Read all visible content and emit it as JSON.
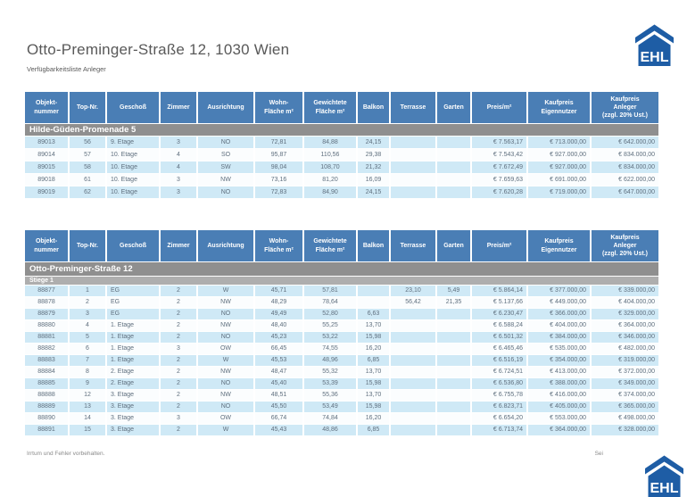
{
  "page": {
    "title": "Otto-Preminger-Straße 12, 1030 Wien",
    "subtitle": "Verfügbarkeitsliste Anleger",
    "footer_left": "Irrtum und Fehler vorbehalten.",
    "footer_right": "Sei",
    "logo_text": "EHL"
  },
  "colors": {
    "header-blue": "#4a7eb5",
    "row-alt-blue": "#cfe9f6",
    "row-white": "#fbfdfe",
    "section-gray": "#8f8f8f",
    "subsection-gray": "#aeaeae",
    "logo-blue": "#1e5da5",
    "title-gray": "#595959",
    "data-text": "#5f6f7e"
  },
  "columns": [
    "Objekt-\nnummer",
    "Top-Nr.",
    "Geschoß",
    "Zimmer",
    "Ausrichtung",
    "Wohn-\nFläche m²",
    "Gewichtete\nFläche m²",
    "Balkon",
    "Terrasse",
    "Garten",
    "Preis/m²",
    "Kaufpreis\nEigennutzer",
    "Kaufpreis\nAnleger\n(zzgl. 20% Ust.)"
  ],
  "tables": [
    {
      "section": "Hilde-Güden-Promenade 5",
      "subsection": null,
      "rows": [
        [
          "89013",
          "56",
          "9. Etage",
          "3",
          "NO",
          "72,81",
          "84,88",
          "24,15",
          "",
          "",
          "€ 7.563,17",
          "€ 713.000,00",
          "€ 642.000,00"
        ],
        [
          "89014",
          "57",
          "10. Etage",
          "4",
          "SO",
          "95,87",
          "110,56",
          "29,38",
          "",
          "",
          "€ 7.543,42",
          "€ 927.000,00",
          "€ 834.000,00"
        ],
        [
          "89015",
          "58",
          "10. Etage",
          "4",
          "SW",
          "98,04",
          "108,70",
          "21,32",
          "",
          "",
          "€ 7.672,49",
          "€ 927.000,00",
          "€ 834.000,00"
        ],
        [
          "89018",
          "61",
          "10. Etage",
          "3",
          "NW",
          "73,16",
          "81,20",
          "16,09",
          "",
          "",
          "€ 7.659,63",
          "€ 691.000,00",
          "€ 622.000,00"
        ],
        [
          "89019",
          "62",
          "10. Etage",
          "3",
          "NO",
          "72,83",
          "84,90",
          "24,15",
          "",
          "",
          "€ 7.620,28",
          "€ 719.000,00",
          "€ 647.000,00"
        ]
      ]
    },
    {
      "section": "Otto-Preminger-Straße 12",
      "subsection": "Stiege 1",
      "rows": [
        [
          "88877",
          "1",
          "EG",
          "2",
          "W",
          "45,71",
          "57,81",
          "",
          "23,10",
          "5,49",
          "€ 5.864,14",
          "€ 377.000,00",
          "€ 339.000,00"
        ],
        [
          "88878",
          "2",
          "EG",
          "2",
          "NW",
          "48,29",
          "78,64",
          "",
          "56,42",
          "21,35",
          "€ 5.137,66",
          "€ 449.000,00",
          "€ 404.000,00"
        ],
        [
          "88879",
          "3",
          "EG",
          "2",
          "NO",
          "49,49",
          "52,80",
          "6,63",
          "",
          "",
          "€ 6.230,47",
          "€ 366.000,00",
          "€ 329.000,00"
        ],
        [
          "88880",
          "4",
          "1. Etage",
          "2",
          "NW",
          "48,40",
          "55,25",
          "13,70",
          "",
          "",
          "€ 6.588,24",
          "€ 404.000,00",
          "€ 364.000,00"
        ],
        [
          "88881",
          "5",
          "1. Etage",
          "2",
          "NO",
          "45,23",
          "53,22",
          "15,98",
          "",
          "",
          "€ 6.501,32",
          "€ 384.000,00",
          "€ 346.000,00"
        ],
        [
          "88882",
          "6",
          "1. Etage",
          "3",
          "OW",
          "66,45",
          "74,55",
          "16,20",
          "",
          "",
          "€ 6.465,46",
          "€ 535.000,00",
          "€ 482.000,00"
        ],
        [
          "88883",
          "7",
          "1. Etage",
          "2",
          "W",
          "45,53",
          "48,96",
          "6,85",
          "",
          "",
          "€ 6.516,19",
          "€ 354.000,00",
          "€ 319.000,00"
        ],
        [
          "88884",
          "8",
          "2. Etage",
          "2",
          "NW",
          "48,47",
          "55,32",
          "13,70",
          "",
          "",
          "€ 6.724,51",
          "€ 413.000,00",
          "€ 372.000,00"
        ],
        [
          "88885",
          "9",
          "2. Etage",
          "2",
          "NO",
          "45,40",
          "53,39",
          "15,98",
          "",
          "",
          "€ 6.536,80",
          "€ 388.000,00",
          "€ 349.000,00"
        ],
        [
          "88888",
          "12",
          "3. Etage",
          "2",
          "NW",
          "48,51",
          "55,36",
          "13,70",
          "",
          "",
          "€ 6.755,78",
          "€ 416.000,00",
          "€ 374.000,00"
        ],
        [
          "88889",
          "13",
          "3. Etage",
          "2",
          "NO",
          "45,50",
          "53,49",
          "15,98",
          "",
          "",
          "€ 6.823,71",
          "€ 405.000,00",
          "€ 365.000,00"
        ],
        [
          "88890",
          "14",
          "3. Etage",
          "3",
          "OW",
          "66,74",
          "74,84",
          "16,20",
          "",
          "",
          "€ 6.654,20",
          "€ 553.000,00",
          "€ 498.000,00"
        ],
        [
          "88891",
          "15",
          "3. Etage",
          "2",
          "W",
          "45,43",
          "48,86",
          "6,85",
          "",
          "",
          "€ 6.713,74",
          "€ 364.000,00",
          "€ 328.000,00"
        ]
      ]
    }
  ]
}
